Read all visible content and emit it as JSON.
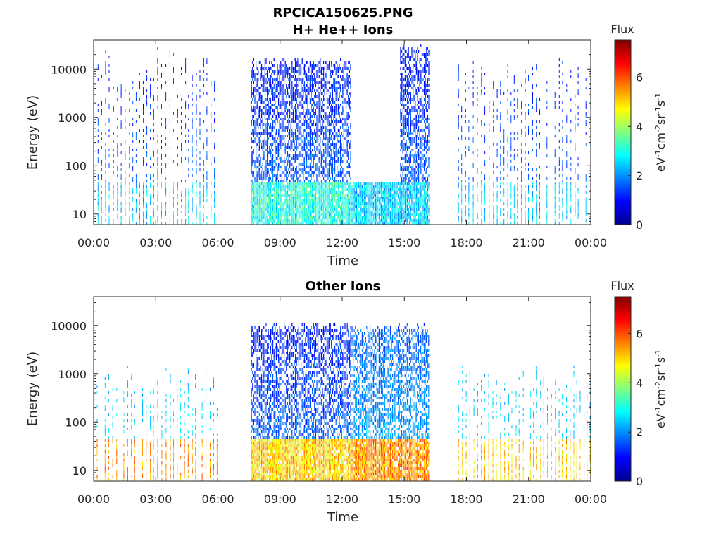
{
  "figure": {
    "filename_title": "RPCICA150625.PNG"
  },
  "colorbar": {
    "label": "Flux",
    "unit_text": "eV",
    "unit_sup1": "-1",
    "unit_mid1": "cm",
    "unit_sup2": "-2",
    "unit_mid2": "sr",
    "unit_sup3": "-1",
    "unit_mid3": "s",
    "unit_sup4": "-1",
    "colormap": "jet",
    "colors": [
      "#00008f",
      "#0000ff",
      "#00ffff",
      "#ffff00",
      "#ff0000",
      "#800000"
    ]
  },
  "chart_data": [
    {
      "type": "heatmap",
      "title": "H+ He++ Ions",
      "xlabel": "Time",
      "ylabel": "Energy (eV)",
      "x_ticks": [
        "00:00",
        "03:00",
        "06:00",
        "09:00",
        "12:00",
        "15:00",
        "18:00",
        "21:00",
        "00:00"
      ],
      "x_range_hours": [
        0,
        24
      ],
      "y_scale": "log",
      "y_ticks": [
        "10",
        "100",
        "1000",
        "10000"
      ],
      "y_range": [
        6,
        40000
      ],
      "colorbar_range": [
        0,
        7.5
      ],
      "colorbar_ticks": [
        "0",
        "2",
        "4",
        "6"
      ],
      "data_gaps_hours": [
        [
          6.05,
          7.6
        ],
        [
          16.2,
          17.6
        ]
      ],
      "regions": [
        {
          "start_hour": 0.0,
          "end_hour": 6.0,
          "energy_range": [
            6,
            30000
          ],
          "density": "sparse vertical sweeps",
          "flux_low_energy": 2.5,
          "flux_high_energy": 1.0
        },
        {
          "start_hour": 7.6,
          "end_hour": 12.4,
          "energy_range": [
            6,
            16000
          ],
          "density": "dense",
          "flux_low_energy": 3.0,
          "flux_high_energy": 1.0
        },
        {
          "start_hour": 12.4,
          "end_hour": 14.8,
          "energy_range": [
            6,
            45
          ],
          "density": "dense",
          "flux_low_energy": 2.5,
          "flux_high_energy": 1.5
        },
        {
          "start_hour": 14.8,
          "end_hour": 16.2,
          "energy_range": [
            6,
            30000
          ],
          "density": "dense",
          "flux_low_energy": 2.5,
          "flux_high_energy": 1.0
        },
        {
          "start_hour": 17.6,
          "end_hour": 24.0,
          "energy_range": [
            6,
            20000
          ],
          "density": "sparse vertical sweeps",
          "flux_low_energy": 2.5,
          "flux_high_energy": 1.0
        }
      ]
    },
    {
      "type": "heatmap",
      "title": "Other Ions",
      "xlabel": "Time",
      "ylabel": "Energy (eV)",
      "x_ticks": [
        "00:00",
        "03:00",
        "06:00",
        "09:00",
        "12:00",
        "15:00",
        "18:00",
        "21:00",
        "00:00"
      ],
      "x_range_hours": [
        0,
        24
      ],
      "y_scale": "log",
      "y_ticks": [
        "10",
        "100",
        "1000",
        "10000"
      ],
      "y_range": [
        6,
        40000
      ],
      "colorbar_range": [
        0,
        7.5
      ],
      "colorbar_ticks": [
        "0",
        "2",
        "4",
        "6"
      ],
      "data_gaps_hours": [
        [
          6.05,
          7.6
        ],
        [
          16.2,
          17.6
        ]
      ],
      "regions": [
        {
          "start_hour": 0.0,
          "end_hour": 6.0,
          "energy_range": [
            6,
            1500
          ],
          "density": "sparse vertical sweeps",
          "flux_low_energy": 5.5,
          "flux_high_energy": 2.0
        },
        {
          "start_hour": 7.6,
          "end_hour": 12.4,
          "energy_range": [
            6,
            11000
          ],
          "density": "dense",
          "flux_low_energy": 5.0,
          "flux_high_energy": 1.0
        },
        {
          "start_hour": 12.4,
          "end_hour": 16.2,
          "energy_range": [
            6,
            10000
          ],
          "density": "dense",
          "flux_low_energy": 5.5,
          "flux_high_energy": 1.5
        },
        {
          "start_hour": 17.6,
          "end_hour": 24.0,
          "energy_range": [
            6,
            1500
          ],
          "density": "sparse vertical sweeps",
          "flux_low_energy": 5.0,
          "flux_high_energy": 2.0
        }
      ]
    }
  ]
}
